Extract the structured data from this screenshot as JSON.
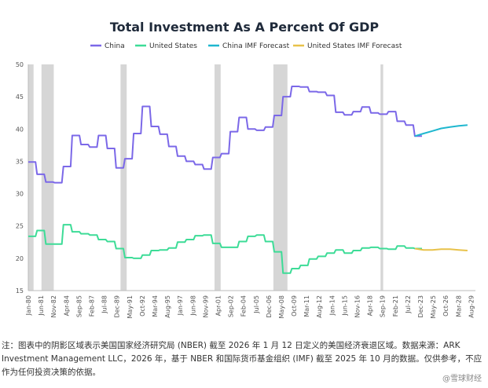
{
  "chart_data": {
    "type": "line",
    "title": "Total Investment As A Percent Of GDP",
    "xlabel": "",
    "ylabel": "",
    "ylim": [
      15,
      50
    ],
    "yticks": [
      15,
      20,
      25,
      30,
      35,
      40,
      45,
      50
    ],
    "xlim": [
      1980.0,
      2030.9
    ],
    "xtick_labels": [
      "Jan-80",
      "Jun-81",
      "Nov-82",
      "Apr-84",
      "Sep-85",
      "Feb-87",
      "Jul-88",
      "Dec-89",
      "May-91",
      "Oct-92",
      "Mar-94",
      "Aug-95",
      "Jan-97",
      "Jun-98",
      "Nov-99",
      "Apr-01",
      "Sep-02",
      "Feb-04",
      "Jul-05",
      "Dec-06",
      "May-08",
      "Oct-09",
      "Mar-11",
      "Aug-12",
      "Jan-14",
      "Jun-15",
      "Nov-16",
      "Apr-18",
      "Sep-19",
      "Feb-21",
      "Jul-22",
      "Dec-23",
      "May-25",
      "Oct-26",
      "Mar-28",
      "Aug-29"
    ],
    "recessions": [
      [
        1980.0,
        1980.6
      ],
      [
        1981.5,
        1982.9
      ],
      [
        1990.5,
        1991.2
      ],
      [
        2001.2,
        2001.9
      ],
      [
        2007.9,
        2009.5
      ],
      [
        2020.1,
        2020.4
      ]
    ],
    "legend": {
      "position": "top-center"
    },
    "grid": false,
    "series": [
      {
        "name": "China",
        "color": "#7b68e8",
        "x": [
          1980,
          1981,
          1982,
          1983,
          1984,
          1985,
          1986,
          1987,
          1988,
          1989,
          1990,
          1991,
          1992,
          1993,
          1994,
          1995,
          1996,
          1997,
          1998,
          1999,
          2000,
          2001,
          2002,
          2003,
          2004,
          2005,
          2006,
          2007,
          2008,
          2009,
          2010,
          2011,
          2012,
          2013,
          2014,
          2015,
          2016,
          2017,
          2018,
          2019,
          2020,
          2021,
          2022,
          2023,
          2024
        ],
        "values": [
          34.9,
          33.0,
          31.8,
          31.7,
          34.2,
          39.0,
          37.6,
          37.2,
          39.0,
          37.0,
          34.0,
          35.4,
          39.3,
          43.5,
          40.4,
          39.2,
          37.3,
          35.8,
          35.0,
          34.5,
          33.8,
          35.6,
          36.2,
          39.6,
          41.8,
          40.0,
          39.8,
          40.3,
          42.1,
          45.0,
          46.6,
          46.5,
          45.8,
          45.7,
          45.2,
          42.6,
          42.2,
          42.7,
          43.4,
          42.5,
          42.3,
          42.7,
          41.2,
          40.6,
          38.9
        ]
      },
      {
        "name": "United States",
        "color": "#3ddc97",
        "x": [
          1980,
          1981,
          1982,
          1983,
          1984,
          1985,
          1986,
          1987,
          1988,
          1989,
          1990,
          1991,
          1992,
          1993,
          1994,
          1995,
          1996,
          1997,
          1998,
          1999,
          2000,
          2001,
          2002,
          2003,
          2004,
          2005,
          2006,
          2007,
          2008,
          2009,
          2010,
          2011,
          2012,
          2013,
          2014,
          2015,
          2016,
          2017,
          2018,
          2019,
          2020,
          2021,
          2022,
          2023,
          2024
        ],
        "values": [
          23.4,
          24.3,
          22.2,
          22.2,
          25.2,
          24.1,
          23.8,
          23.6,
          22.9,
          22.6,
          21.5,
          20.1,
          20.0,
          20.5,
          21.2,
          21.3,
          21.6,
          22.5,
          22.9,
          23.5,
          23.6,
          22.3,
          21.7,
          21.7,
          22.6,
          23.4,
          23.6,
          22.6,
          21.0,
          17.7,
          18.4,
          18.9,
          19.9,
          20.3,
          20.8,
          21.3,
          20.8,
          21.2,
          21.6,
          21.7,
          21.5,
          21.4,
          21.9,
          21.6,
          21.5
        ]
      },
      {
        "name": "China IMF Forecast",
        "color": "#1fb7cf",
        "x": [
          2024,
          2025,
          2026,
          2027,
          2028,
          2029,
          2030
        ],
        "values": [
          38.9,
          39.3,
          39.7,
          40.1,
          40.3,
          40.5,
          40.6
        ]
      },
      {
        "name": "United States IMF Forecast",
        "color": "#e8c24a",
        "x": [
          2024,
          2025,
          2026,
          2027,
          2028,
          2029,
          2030
        ],
        "values": [
          21.5,
          21.3,
          21.3,
          21.4,
          21.4,
          21.3,
          21.2
        ]
      }
    ]
  },
  "footnote": "注：图表中的阴影区域表示美国国家经济研究局 (NBER) 截至 2026 年 1 月 12 日定义的美国经济衰退区域。数据来源：ARK Investment Management LLC，2026 年，基于 NBER 和国际货币基金组织 (IMF) 截至 2025 年 10 月的数据。仅供参考，不应作为任何投资决策的依据。",
  "watermark": "@雪球财经"
}
